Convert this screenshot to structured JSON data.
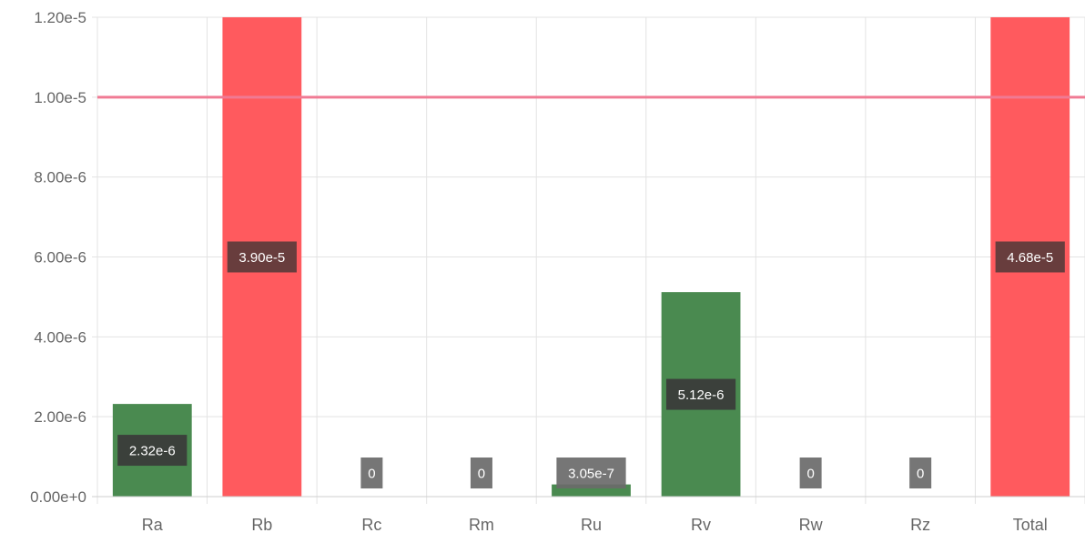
{
  "chart_data": {
    "type": "bar",
    "categories": [
      "Ra",
      "Rb",
      "Rc",
      "Rm",
      "Ru",
      "Rv",
      "Rw",
      "Rz",
      "Total"
    ],
    "values": [
      2.32e-06,
      3.9e-05,
      0,
      0,
      3.05e-07,
      5.12e-06,
      0,
      0,
      4.68e-05
    ],
    "value_labels": [
      "2.32e-6",
      "3.90e-5",
      "0",
      "0",
      "3.05e-7",
      "5.12e-6",
      "0",
      "0",
      "4.68e-5"
    ],
    "bar_colors": [
      "#4a8a50",
      "#ff5a5e",
      "#4a8a50",
      "#4a8a50",
      "#4a8a50",
      "#4a8a50",
      "#4a8a50",
      "#4a8a50",
      "#ff5a5e"
    ],
    "ylim": [
      0,
      1.2e-05
    ],
    "y_ticks": [
      0,
      2e-06,
      4e-06,
      6e-06,
      8e-06,
      1e-05,
      1.2e-05
    ],
    "y_tick_labels": [
      "0.00e+0",
      "2.00e-6",
      "4.00e-6",
      "6.00e-6",
      "8.00e-6",
      "1.00e-5",
      "1.20e-5"
    ],
    "threshold": 1e-05,
    "threshold_color": "#f07a93",
    "grid": true,
    "title": "",
    "xlabel": "",
    "ylabel": ""
  }
}
